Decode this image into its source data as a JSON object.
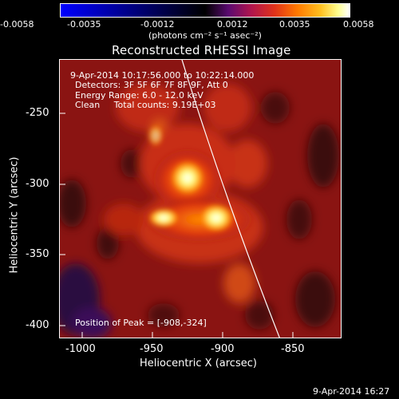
{
  "colorbar": {
    "ticks": [
      "-0.0058",
      "-0.0035",
      "-0.0012",
      "0.0012",
      "0.0035",
      "0.0058"
    ],
    "unit_label": "(photons cm⁻² s⁻¹ asec⁻²)"
  },
  "title": "Reconstructed RHESSI Image",
  "annotations": {
    "time_range": "9-Apr-2014 10:17:56.000 to 10:22:14.000",
    "detectors": "Detectors: 3F 5F 6F 7F 8F 9F, Att 0",
    "energy": "Energy Range: 6.0 - 12.0 keV",
    "clean": "Clean     Total counts: 9.19E+03",
    "peak": "Position of Peak = [-908,-324]"
  },
  "axes": {
    "xlabel": "Heliocentric X (arcsec)",
    "ylabel": "Heliocentric Y (arcsec)",
    "xticks": [
      "-1000",
      "-950",
      "-900",
      "-850"
    ],
    "yticks": [
      "-250",
      "-300",
      "-350",
      "-400"
    ]
  },
  "footer": "9-Apr-2014 16:27",
  "colors": {
    "background": "#000000",
    "limb": "#ffffff"
  }
}
